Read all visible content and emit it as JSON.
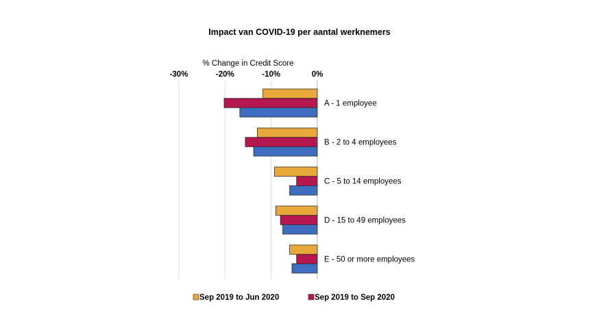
{
  "chart_data": {
    "type": "bar",
    "orientation": "horizontal",
    "title": "Impact van COVID-19 per aantal werknemers",
    "xlabel": "% Change in Credit Score",
    "xlim": [
      -30,
      0
    ],
    "ticks": [
      {
        "value": -30,
        "label": "-30%"
      },
      {
        "value": -20,
        "label": "-20%"
      },
      {
        "value": -10,
        "label": "-10%"
      },
      {
        "value": 0,
        "label": "0%"
      }
    ],
    "grid": true,
    "legend_position": "bottom",
    "categories": [
      "A - 1 employee",
      "B - 2 to 4 employees",
      "C - 5 to 14 employees",
      "D - 15 to 49 employees",
      "E - 50 or more employees"
    ],
    "series": [
      {
        "name": "Sep 2019 to Jun 2020",
        "color": "#E8A83A",
        "values": [
          -11.8,
          -13.0,
          -9.3,
          -9.0,
          -6.0
        ],
        "show_in_legend": true
      },
      {
        "name": "Sep 2019 to Sep 2020",
        "color": "#B5174F",
        "values": [
          -20.2,
          -15.6,
          -4.5,
          -8.0,
          -4.5
        ],
        "show_in_legend": true
      },
      {
        "name": "",
        "color": "#3F6DBF",
        "values": [
          -16.8,
          -13.8,
          -6.0,
          -7.5,
          -5.5
        ],
        "show_in_legend": false
      }
    ]
  }
}
